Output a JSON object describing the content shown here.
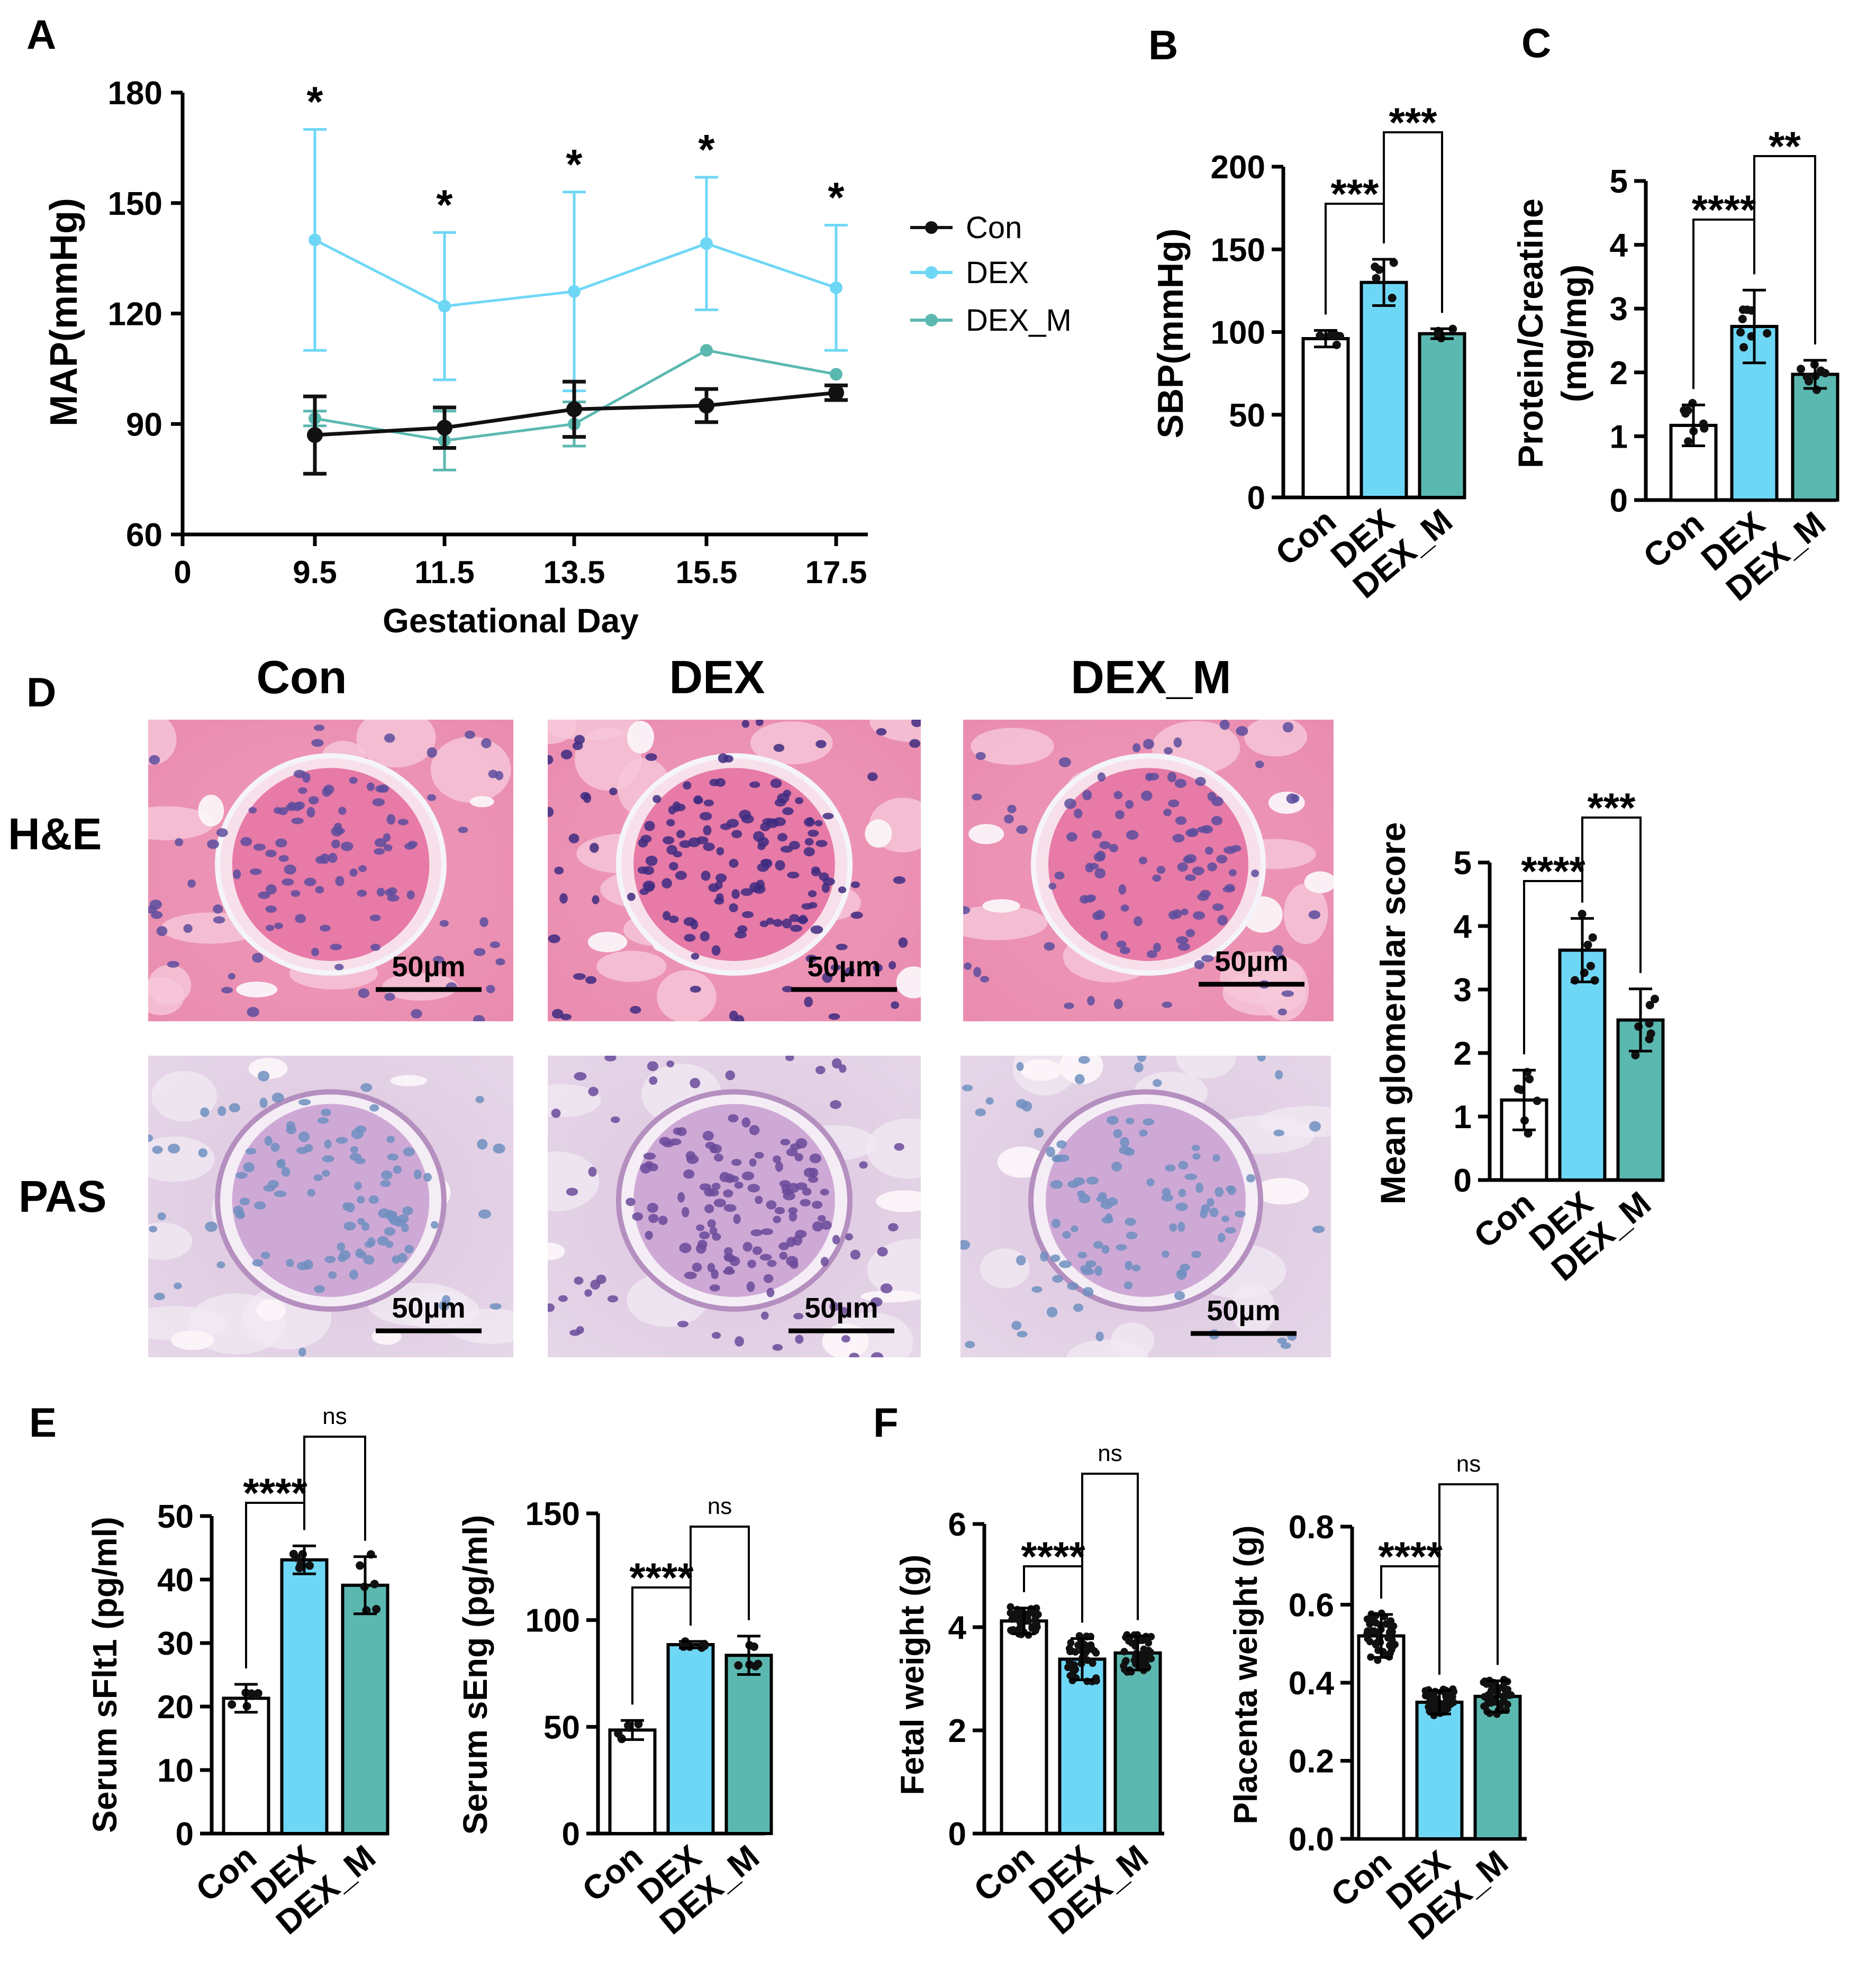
{
  "colors": {
    "con": "#ffffff",
    "dex": "#6fd7f6",
    "dex_m": "#5bb8b0",
    "axis": "#000000",
    "line_con": "#111111",
    "line_dex": "#6fd7f6",
    "line_dexm": "#5bb8b0"
  },
  "categories": [
    "Con",
    "DEX",
    "DEX_M"
  ],
  "histology": {
    "columns": [
      "Con",
      "DEX",
      "DEX_M"
    ],
    "rows": [
      "H&E",
      "PAS"
    ],
    "scale_bar": "50µm"
  },
  "chart_data": [
    {
      "panel": "A",
      "type": "line",
      "xlabel": "Gestational Day",
      "ylabel": "MAP(mmHg)",
      "x": [
        9.5,
        11.5,
        13.5,
        15.5,
        17.5
      ],
      "xticks": [
        "0",
        "9.5",
        "11.5",
        "13.5",
        "15.5",
        "17.5"
      ],
      "yticks": [
        "60",
        "90",
        "120",
        "150",
        "180"
      ],
      "ylim": [
        60,
        180
      ],
      "series": [
        {
          "name": "Con",
          "values": [
            87,
            89,
            94,
            95,
            98.5
          ],
          "err": [
            10.5,
            5.5,
            7.5,
            4.5,
            2
          ]
        },
        {
          "name": "DEX",
          "values": [
            140,
            122,
            126,
            139,
            127
          ],
          "err": [
            30,
            20,
            27,
            18,
            17
          ]
        },
        {
          "name": "DEX_M",
          "values": [
            91.5,
            85.5,
            90,
            110,
            103.5
          ],
          "err": [
            2,
            8,
            6,
            0,
            0
          ]
        }
      ],
      "annotations": [
        "*",
        "*",
        "*",
        "*",
        "*"
      ]
    },
    {
      "panel": "B",
      "type": "bar",
      "ylabel": "SBP(mmHg)",
      "categories": [
        "Con",
        "DEX",
        "DEX_M"
      ],
      "values": [
        96,
        130,
        99
      ],
      "err": [
        5,
        14,
        3
      ],
      "ylim": [
        0,
        200
      ],
      "yticks": [
        "0",
        "50",
        "100",
        "150",
        "200"
      ],
      "sig": [
        {
          "label": "***"
        },
        {
          "label": "***"
        }
      ]
    },
    {
      "panel": "C",
      "type": "bar",
      "ylabel": "Protein/Creatine",
      "ylabel2": "(mg/mg)",
      "categories": [
        "Con",
        "DEX",
        "DEX_M"
      ],
      "values": [
        1.17,
        2.72,
        1.97
      ],
      "err": [
        0.32,
        0.57,
        0.22
      ],
      "ylim": [
        0,
        5
      ],
      "yticks": [
        "0",
        "1",
        "2",
        "3",
        "4",
        "5"
      ],
      "sig": [
        {
          "label": "****"
        },
        {
          "label": "**"
        }
      ]
    },
    {
      "panel": "D",
      "type": "bar",
      "ylabel": "Mean glomerular score",
      "categories": [
        "Con",
        "DEX",
        "DEX_M"
      ],
      "values": [
        1.26,
        3.62,
        2.52
      ],
      "err": [
        0.47,
        0.5,
        0.49
      ],
      "ylim": [
        0,
        5
      ],
      "yticks": [
        "0",
        "1",
        "2",
        "3",
        "4",
        "5"
      ],
      "sig": [
        {
          "label": "****"
        },
        {
          "label": "***"
        }
      ]
    },
    {
      "panel": "E",
      "type": "bar",
      "ylabel": "Serum sFlt1 (pg/ml)",
      "categories": [
        "Con",
        "DEX",
        "DEX_M"
      ],
      "values": [
        21.3,
        43.1,
        39.1
      ],
      "err": [
        2.2,
        2.2,
        4.5
      ],
      "ylim": [
        0,
        50
      ],
      "yticks": [
        "0",
        "10",
        "20",
        "30",
        "40",
        "50"
      ],
      "sig": [
        {
          "label": "****"
        },
        {
          "label": "ns"
        }
      ]
    },
    {
      "panel": "E",
      "type": "bar",
      "ylabel": "Serum sEng (pg/ml)",
      "categories": [
        "Con",
        "DEX",
        "DEX_M"
      ],
      "values": [
        48.5,
        88.5,
        83.5
      ],
      "err": [
        4.5,
        1.5,
        9
      ],
      "ylim": [
        0,
        150
      ],
      "yticks": [
        "0",
        "50",
        "100",
        "150"
      ],
      "sig": [
        {
          "label": "****"
        },
        {
          "label": "ns"
        }
      ]
    },
    {
      "panel": "F",
      "type": "bar",
      "ylabel": "Fetal weight (g)",
      "categories": [
        "Con",
        "DEX",
        "DEX_M"
      ],
      "values": [
        4.12,
        3.38,
        3.5
      ],
      "err": [
        0.25,
        0.4,
        0.33
      ],
      "ylim": [
        0,
        6
      ],
      "yticks": [
        "0",
        "2",
        "4",
        "6"
      ],
      "sig": [
        {
          "label": "****"
        },
        {
          "label": "ns"
        }
      ]
    },
    {
      "panel": "F",
      "type": "bar",
      "ylabel": "Placenta weight (g)",
      "categories": [
        "Con",
        "DEX",
        "DEX_M"
      ],
      "values": [
        0.52,
        0.35,
        0.365
      ],
      "err": [
        0.055,
        0.03,
        0.04
      ],
      "ylim": [
        0,
        0.8
      ],
      "yticks": [
        "0.0",
        "0.2",
        "0.4",
        "0.6",
        "0.8"
      ],
      "sig": [
        {
          "label": "****"
        },
        {
          "label": "ns"
        }
      ]
    }
  ]
}
